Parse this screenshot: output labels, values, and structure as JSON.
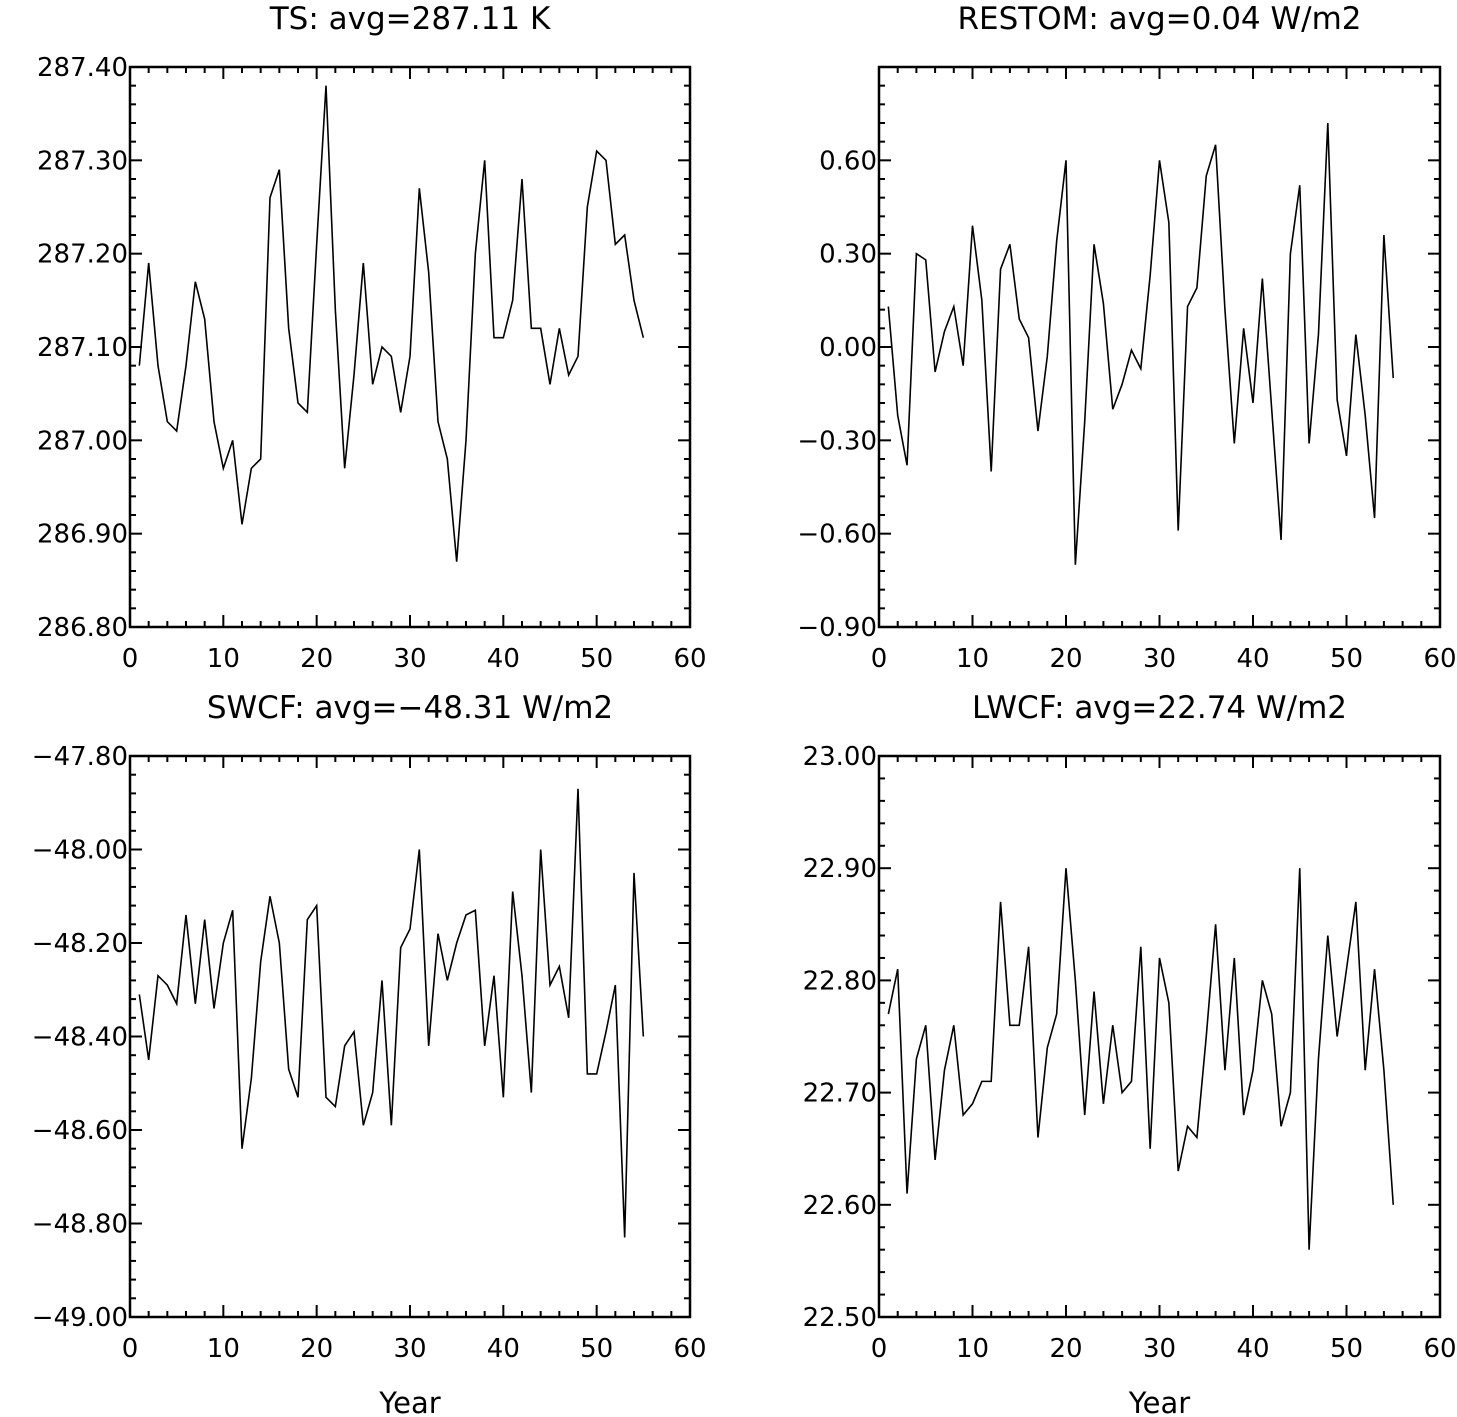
{
  "chart_data": [
    {
      "type": "line",
      "title": "TS: avg=287.11 K",
      "xlabel": "",
      "ylabel": "",
      "xlim": [
        0,
        60
      ],
      "ylim": [
        286.8,
        287.4
      ],
      "xticks": [
        "0",
        "10",
        "20",
        "30",
        "40",
        "50",
        "60"
      ],
      "yticks": [
        "286.80",
        "286.90",
        "287.00",
        "287.10",
        "287.20",
        "287.30",
        "287.40"
      ],
      "grid": false,
      "x": [
        1,
        2,
        3,
        4,
        5,
        6,
        7,
        8,
        9,
        10,
        11,
        12,
        13,
        14,
        15,
        16,
        17,
        18,
        19,
        20,
        21,
        22,
        23,
        24,
        25,
        26,
        27,
        28,
        29,
        30,
        31,
        32,
        33,
        34,
        35,
        36,
        37,
        38,
        39,
        40,
        41,
        42,
        43,
        44,
        45,
        46,
        47,
        48,
        49,
        50,
        51,
        52,
        53,
        54,
        55
      ],
      "series": [
        {
          "values": [
            287.08,
            287.19,
            287.08,
            287.02,
            287.01,
            287.08,
            287.17,
            287.13,
            287.02,
            286.97,
            287.0,
            286.91,
            286.97,
            286.98,
            287.26,
            287.29,
            287.12,
            287.04,
            287.03,
            287.21,
            287.38,
            287.14,
            286.97,
            287.07,
            287.19,
            287.06,
            287.1,
            287.09,
            287.03,
            287.09,
            287.27,
            287.18,
            287.02,
            286.98,
            286.87,
            287.0,
            287.2,
            287.3,
            287.11,
            287.11,
            287.15,
            287.28,
            287.12,
            287.12,
            287.06,
            287.12,
            287.07,
            287.09,
            287.25,
            287.31,
            287.3,
            287.21,
            287.22,
            287.15,
            287.11
          ]
        }
      ]
    },
    {
      "type": "line",
      "title": "RESTOM: avg=0.04 W/m2",
      "xlabel": "",
      "ylabel": "",
      "xlim": [
        0,
        60
      ],
      "ylim": [
        -0.9,
        0.9
      ],
      "xticks": [
        "0",
        "10",
        "20",
        "30",
        "40",
        "50",
        "60"
      ],
      "yticks": [
        "−0.90",
        "−0.60",
        "−0.30",
        "0.00",
        "0.30",
        "0.60"
      ],
      "grid": false,
      "x": [
        1,
        2,
        3,
        4,
        5,
        6,
        7,
        8,
        9,
        10,
        11,
        12,
        13,
        14,
        15,
        16,
        17,
        18,
        19,
        20,
        21,
        22,
        23,
        24,
        25,
        26,
        27,
        28,
        29,
        30,
        31,
        32,
        33,
        34,
        35,
        36,
        37,
        38,
        39,
        40,
        41,
        42,
        43,
        44,
        45,
        46,
        47,
        48,
        49,
        50,
        51,
        52,
        53,
        54,
        55
      ],
      "series": [
        {
          "values": [
            0.13,
            -0.22,
            -0.38,
            0.3,
            0.28,
            -0.08,
            0.05,
            0.13,
            -0.06,
            0.39,
            0.15,
            -0.4,
            0.25,
            0.33,
            0.09,
            0.03,
            -0.27,
            -0.03,
            0.34,
            0.6,
            -0.7,
            -0.24,
            0.33,
            0.14,
            -0.2,
            -0.12,
            -0.01,
            -0.07,
            0.23,
            0.6,
            0.4,
            -0.59,
            0.13,
            0.19,
            0.55,
            0.65,
            0.12,
            -0.31,
            0.06,
            -0.18,
            0.22,
            -0.2,
            -0.62,
            0.3,
            0.52,
            -0.31,
            0.04,
            0.72,
            -0.17,
            -0.35,
            0.04,
            -0.22,
            -0.55,
            0.36,
            -0.1
          ]
        }
      ]
    },
    {
      "type": "line",
      "title": "SWCF: avg=−48.31 W/m2",
      "xlabel": "Year",
      "ylabel": "",
      "xlim": [
        0,
        60
      ],
      "ylim": [
        -49.0,
        -47.8
      ],
      "xticks": [
        "0",
        "10",
        "20",
        "30",
        "40",
        "50",
        "60"
      ],
      "yticks": [
        "−49.00",
        "−48.80",
        "−48.60",
        "−48.40",
        "−48.20",
        "−48.00",
        "−47.80"
      ],
      "grid": false,
      "x": [
        1,
        2,
        3,
        4,
        5,
        6,
        7,
        8,
        9,
        10,
        11,
        12,
        13,
        14,
        15,
        16,
        17,
        18,
        19,
        20,
        21,
        22,
        23,
        24,
        25,
        26,
        27,
        28,
        29,
        30,
        31,
        32,
        33,
        34,
        35,
        36,
        37,
        38,
        39,
        40,
        41,
        42,
        43,
        44,
        45,
        46,
        47,
        48,
        49,
        50,
        51,
        52,
        53,
        54,
        55
      ],
      "series": [
        {
          "values": [
            -48.31,
            -48.45,
            -48.27,
            -48.29,
            -48.33,
            -48.14,
            -48.33,
            -48.15,
            -48.34,
            -48.2,
            -48.13,
            -48.64,
            -48.49,
            -48.24,
            -48.1,
            -48.2,
            -48.47,
            -48.53,
            -48.15,
            -48.12,
            -48.53,
            -48.55,
            -48.42,
            -48.39,
            -48.59,
            -48.52,
            -48.28,
            -48.59,
            -48.21,
            -48.17,
            -48.0,
            -48.42,
            -48.18,
            -48.28,
            -48.2,
            -48.14,
            -48.13,
            -48.42,
            -48.27,
            -48.53,
            -48.09,
            -48.27,
            -48.52,
            -48.0,
            -48.29,
            -48.25,
            -48.36,
            -47.87,
            -48.48,
            -48.48,
            -48.39,
            -48.29,
            -48.83,
            -48.05,
            -48.4
          ]
        }
      ]
    },
    {
      "type": "line",
      "title": "LWCF: avg=22.74 W/m2",
      "xlabel": "Year",
      "ylabel": "",
      "xlim": [
        0,
        60
      ],
      "ylim": [
        22.5,
        23.0
      ],
      "xticks": [
        "0",
        "10",
        "20",
        "30",
        "40",
        "50",
        "60"
      ],
      "yticks": [
        "22.50",
        "22.60",
        "22.70",
        "22.80",
        "22.90",
        "23.00"
      ],
      "grid": false,
      "x": [
        1,
        2,
        3,
        4,
        5,
        6,
        7,
        8,
        9,
        10,
        11,
        12,
        13,
        14,
        15,
        16,
        17,
        18,
        19,
        20,
        21,
        22,
        23,
        24,
        25,
        26,
        27,
        28,
        29,
        30,
        31,
        32,
        33,
        34,
        35,
        36,
        37,
        38,
        39,
        40,
        41,
        42,
        43,
        44,
        45,
        46,
        47,
        48,
        49,
        50,
        51,
        52,
        53,
        54,
        55
      ],
      "series": [
        {
          "values": [
            22.77,
            22.81,
            22.61,
            22.73,
            22.76,
            22.64,
            22.72,
            22.76,
            22.68,
            22.69,
            22.71,
            22.71,
            22.87,
            22.76,
            22.76,
            22.83,
            22.66,
            22.74,
            22.77,
            22.9,
            22.8,
            22.68,
            22.79,
            22.69,
            22.76,
            22.7,
            22.71,
            22.83,
            22.65,
            22.82,
            22.78,
            22.63,
            22.67,
            22.66,
            22.75,
            22.85,
            22.72,
            22.82,
            22.68,
            22.72,
            22.8,
            22.77,
            22.67,
            22.7,
            22.9,
            22.56,
            22.73,
            22.84,
            22.75,
            22.81,
            22.87,
            22.72,
            22.81,
            22.72,
            22.6
          ]
        }
      ]
    }
  ]
}
